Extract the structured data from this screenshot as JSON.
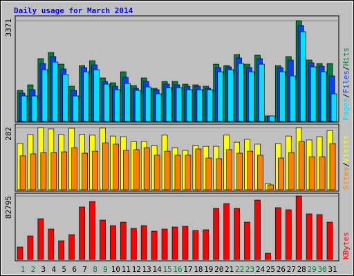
{
  "chart_data": [
    {
      "type": "bar",
      "title": "Daily usage for March 2014",
      "series": [
        {
          "name": "Hits",
          "color": "#008040",
          "values": [
            1039,
            1224,
            2101,
            2309,
            1916,
            1178,
            1870,
            2032,
            1455,
            1293,
            1662,
            1201,
            1455,
            1108,
            1339,
            1339,
            1247,
            1224,
            1178,
            1916,
            1870,
            2240,
            1916,
            2217,
            185,
            1870,
            2170,
            3371,
            2055,
            1940,
            1940
          ]
        },
        {
          "name": "Files",
          "color": "#0040ff",
          "values": [
            947,
            1062,
            1940,
            2170,
            1755,
            1039,
            1801,
            1893,
            1339,
            1178,
            1478,
            1108,
            1339,
            1062,
            1247,
            1224,
            1178,
            1178,
            1108,
            1801,
            1824,
            2124,
            1801,
            2101,
            185,
            1801,
            2055,
            3210,
            1963,
            1847,
            1524
          ]
        },
        {
          "name": "Pages",
          "color": "#00e0ff",
          "values": [
            854,
            854,
            1732,
            1986,
            1570,
            854,
            1662,
            1732,
            1247,
            1062,
            1270,
            1039,
            1155,
            924,
            1131,
            1131,
            1062,
            1062,
            1062,
            1662,
            1732,
            1940,
            1662,
            1916,
            185,
            1662,
            1524,
            3002,
            1824,
            1662,
            924
          ]
        }
      ],
      "ylim": [
        0,
        3371
      ],
      "yticks": [
        3371
      ],
      "grid": true
    },
    {
      "type": "bar",
      "series": [
        {
          "name": "Visits",
          "color": "#ffff00",
          "values": [
            210,
            251,
            282,
            276,
            251,
            279,
            251,
            248,
            280,
            244,
            241,
            219,
            219,
            201,
            248,
            191,
            179,
            201,
            197,
            197,
            248,
            216,
            229,
            207,
            28,
            210,
            244,
            282,
            226,
            241,
            269
          ]
        },
        {
          "name": "Sites",
          "color": "#ff8000",
          "values": [
            154,
            163,
            169,
            169,
            172,
            191,
            166,
            175,
            213,
            207,
            179,
            182,
            191,
            157,
            175,
            157,
            157,
            185,
            144,
            141,
            182,
            166,
            175,
            157,
            22,
            144,
            169,
            219,
            150,
            150,
            210
          ]
        }
      ],
      "ylim": [
        0,
        282
      ],
      "yticks": [
        282
      ],
      "grid": true
    },
    {
      "type": "bar",
      "categories": [
        "1",
        "2",
        "3",
        "4",
        "5",
        "6",
        "7",
        "8",
        "9",
        "10",
        "11",
        "12",
        "13",
        "14",
        "15",
        "16",
        "17",
        "18",
        "19",
        "20",
        "21",
        "22",
        "23",
        "24",
        "25",
        "26",
        "27",
        "28",
        "29",
        "30",
        "31"
      ],
      "category_colors": [
        "#008040",
        "#008040",
        "#000000",
        "#000000",
        "#000000",
        "#000000",
        "#000000",
        "#008040",
        "#008040",
        "#000000",
        "#000000",
        "#000000",
        "#000000",
        "#000000",
        "#008040",
        "#008040",
        "#000000",
        "#000000",
        "#000000",
        "#000000",
        "#000000",
        "#008040",
        "#008040",
        "#000000",
        "#000000",
        "#000000",
        "#000000",
        "#000000",
        "#008040",
        "#008040",
        "#000000"
      ],
      "series": [
        {
          "name": "KBytes",
          "color": "#ff0000",
          "values": [
            16200,
            30600,
            53100,
            39600,
            24300,
            32400,
            68400,
            75600,
            51300,
            44100,
            48600,
            40500,
            44100,
            36900,
            39600,
            42300,
            43200,
            37800,
            38700,
            66600,
            72900,
            66600,
            48600,
            77400,
            8100,
            67500,
            64800,
            82795,
            59400,
            58500,
            48600
          ]
        }
      ],
      "ylim": [
        0,
        82795
      ],
      "yticks": [
        82795
      ],
      "grid": true
    }
  ]
}
